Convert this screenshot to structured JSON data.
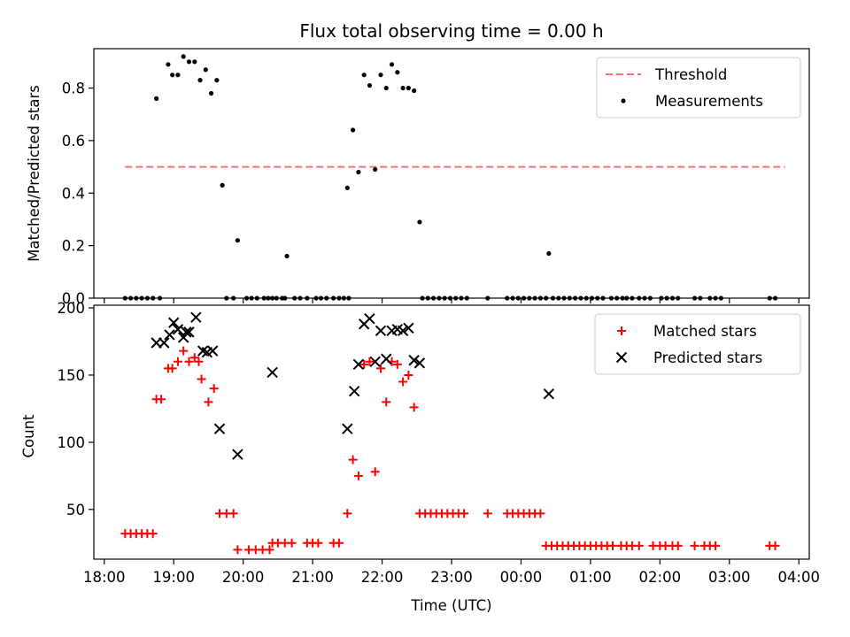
{
  "chart_data": [
    {
      "type": "scatter",
      "title": "Flux total observing time = 0.00 h",
      "xlabel": "",
      "ylabel": "Matched/Predicted stars",
      "x_unit": "hours since 18:00 UTC",
      "xlim": [
        -0.15,
        10.15
      ],
      "ylim": [
        0,
        0.95
      ],
      "yticks": [
        0.0,
        0.2,
        0.4,
        0.6,
        0.8
      ],
      "ytick_labels": [
        "0.0",
        "0.2",
        "0.4",
        "0.6",
        "0.8"
      ],
      "threshold": {
        "name": "Threshold",
        "value": 0.5,
        "x_range": [
          0.3,
          9.8
        ],
        "color": "#ff7070",
        "style": "dashed"
      },
      "series": [
        {
          "name": "Measurements",
          "color": "#000000",
          "marker": "dot",
          "points": [
            [
              0.3,
              0
            ],
            [
              0.38,
              0
            ],
            [
              0.46,
              0
            ],
            [
              0.54,
              0
            ],
            [
              0.62,
              0
            ],
            [
              0.7,
              0
            ],
            [
              0.8,
              0
            ],
            [
              0.75,
              0.76
            ],
            [
              0.92,
              0.89
            ],
            [
              0.98,
              0.85
            ],
            [
              1.06,
              0.85
            ],
            [
              1.14,
              0.92
            ],
            [
              1.22,
              0.9
            ],
            [
              1.3,
              0.9
            ],
            [
              1.38,
              0.83
            ],
            [
              1.46,
              0.87
            ],
            [
              1.54,
              0.78
            ],
            [
              1.62,
              0.83
            ],
            [
              1.7,
              0.43
            ],
            [
              1.76,
              0
            ],
            [
              1.86,
              0
            ],
            [
              1.92,
              0.22
            ],
            [
              2.05,
              0
            ],
            [
              2.12,
              0
            ],
            [
              2.2,
              0
            ],
            [
              2.3,
              0
            ],
            [
              2.36,
              0
            ],
            [
              2.42,
              0
            ],
            [
              2.48,
              0
            ],
            [
              2.56,
              0
            ],
            [
              2.63,
              0.16
            ],
            [
              2.6,
              0
            ],
            [
              2.74,
              0
            ],
            [
              2.82,
              0
            ],
            [
              2.92,
              0
            ],
            [
              3.05,
              0
            ],
            [
              3.12,
              0
            ],
            [
              3.2,
              0
            ],
            [
              3.3,
              0
            ],
            [
              3.38,
              0
            ],
            [
              3.45,
              0
            ],
            [
              3.52,
              0
            ],
            [
              3.5,
              0.42
            ],
            [
              3.58,
              0.64
            ],
            [
              3.66,
              0.48
            ],
            [
              3.74,
              0.85
            ],
            [
              3.82,
              0.81
            ],
            [
              3.9,
              0.49
            ],
            [
              3.98,
              0.85
            ],
            [
              4.06,
              0.8
            ],
            [
              4.14,
              0.89
            ],
            [
              4.22,
              0.86
            ],
            [
              4.3,
              0.8
            ],
            [
              4.38,
              0.8
            ],
            [
              4.46,
              0.79
            ],
            [
              4.54,
              0.29
            ],
            [
              4.58,
              0
            ],
            [
              4.66,
              0
            ],
            [
              4.74,
              0
            ],
            [
              4.82,
              0
            ],
            [
              4.9,
              0
            ],
            [
              4.98,
              0
            ],
            [
              5.06,
              0
            ],
            [
              5.14,
              0
            ],
            [
              5.22,
              0
            ],
            [
              5.52,
              0
            ],
            [
              5.8,
              0
            ],
            [
              5.88,
              0
            ],
            [
              5.96,
              0
            ],
            [
              6.04,
              0
            ],
            [
              6.12,
              0
            ],
            [
              6.2,
              0
            ],
            [
              6.28,
              0
            ],
            [
              6.36,
              0
            ],
            [
              6.4,
              0.17
            ],
            [
              6.46,
              0
            ],
            [
              6.54,
              0
            ],
            [
              6.62,
              0
            ],
            [
              6.7,
              0
            ],
            [
              6.78,
              0
            ],
            [
              6.86,
              0
            ],
            [
              6.94,
              0
            ],
            [
              7.02,
              0
            ],
            [
              7.1,
              0
            ],
            [
              7.18,
              0
            ],
            [
              7.3,
              0
            ],
            [
              7.38,
              0
            ],
            [
              7.46,
              0
            ],
            [
              7.52,
              0
            ],
            [
              7.6,
              0
            ],
            [
              7.7,
              0
            ],
            [
              7.78,
              0
            ],
            [
              7.86,
              0
            ],
            [
              8.02,
              0
            ],
            [
              8.1,
              0
            ],
            [
              8.18,
              0
            ],
            [
              8.26,
              0
            ],
            [
              8.5,
              0
            ],
            [
              8.58,
              0
            ],
            [
              8.72,
              0
            ],
            [
              8.8,
              0
            ],
            [
              8.88,
              0
            ],
            [
              9.58,
              0
            ],
            [
              9.66,
              0
            ]
          ]
        }
      ],
      "legend": {
        "position": "top-right",
        "entries": [
          "Threshold",
          "Measurements"
        ]
      }
    },
    {
      "type": "scatter",
      "title": "",
      "xlabel": "Time (UTC)",
      "ylabel": "Count",
      "x_unit": "hours since 18:00 UTC",
      "xlim": [
        -0.15,
        10.15
      ],
      "ylim": [
        13,
        202
      ],
      "yticks": [
        50,
        100,
        150,
        200
      ],
      "ytick_labels": [
        "50",
        "100",
        "150",
        "200"
      ],
      "xticks": [
        0,
        1,
        2,
        3,
        4,
        5,
        6,
        7,
        8,
        9,
        10
      ],
      "xtick_labels": [
        "18:00",
        "19:00",
        "20:00",
        "21:00",
        "22:00",
        "23:00",
        "00:00",
        "01:00",
        "02:00",
        "03:00",
        "04:00"
      ],
      "series": [
        {
          "name": "Matched stars",
          "color": "#ff0000",
          "marker": "plus",
          "points": [
            [
              0.3,
              32
            ],
            [
              0.38,
              32
            ],
            [
              0.46,
              32
            ],
            [
              0.54,
              32
            ],
            [
              0.62,
              32
            ],
            [
              0.7,
              32
            ],
            [
              0.75,
              132
            ],
            [
              0.82,
              132
            ],
            [
              0.92,
              155
            ],
            [
              0.98,
              155
            ],
            [
              1.06,
              160
            ],
            [
              1.14,
              168
            ],
            [
              1.22,
              160
            ],
            [
              1.3,
              163
            ],
            [
              1.36,
              160
            ],
            [
              1.4,
              147
            ],
            [
              1.5,
              130
            ],
            [
              1.58,
              140
            ],
            [
              1.66,
              47
            ],
            [
              1.76,
              47
            ],
            [
              1.86,
              47
            ],
            [
              1.92,
              20
            ],
            [
              2.08,
              20
            ],
            [
              2.18,
              20
            ],
            [
              2.28,
              20
            ],
            [
              2.38,
              20
            ],
            [
              2.42,
              25
            ],
            [
              2.5,
              25
            ],
            [
              2.6,
              25
            ],
            [
              2.7,
              25
            ],
            [
              2.92,
              25
            ],
            [
              3.0,
              25
            ],
            [
              3.08,
              25
            ],
            [
              3.3,
              25
            ],
            [
              3.38,
              25
            ],
            [
              3.5,
              47
            ],
            [
              3.58,
              87
            ],
            [
              3.66,
              75
            ],
            [
              3.74,
              158
            ],
            [
              3.82,
              160
            ],
            [
              3.9,
              78
            ],
            [
              3.98,
              155
            ],
            [
              4.06,
              130
            ],
            [
              4.14,
              160
            ],
            [
              4.22,
              158
            ],
            [
              4.3,
              145
            ],
            [
              4.38,
              150
            ],
            [
              4.46,
              126
            ],
            [
              4.54,
              47
            ],
            [
              4.62,
              47
            ],
            [
              4.7,
              47
            ],
            [
              4.78,
              47
            ],
            [
              4.86,
              47
            ],
            [
              4.94,
              47
            ],
            [
              5.02,
              47
            ],
            [
              5.1,
              47
            ],
            [
              5.18,
              47
            ],
            [
              5.52,
              47
            ],
            [
              5.8,
              47
            ],
            [
              5.88,
              47
            ],
            [
              5.96,
              47
            ],
            [
              6.04,
              47
            ],
            [
              6.12,
              47
            ],
            [
              6.2,
              47
            ],
            [
              6.28,
              47
            ],
            [
              6.36,
              23
            ],
            [
              6.44,
              23
            ],
            [
              6.52,
              23
            ],
            [
              6.6,
              23
            ],
            [
              6.68,
              23
            ],
            [
              6.76,
              23
            ],
            [
              6.84,
              23
            ],
            [
              6.92,
              23
            ],
            [
              7.0,
              23
            ],
            [
              7.08,
              23
            ],
            [
              7.16,
              23
            ],
            [
              7.24,
              23
            ],
            [
              7.32,
              23
            ],
            [
              7.44,
              23
            ],
            [
              7.52,
              23
            ],
            [
              7.6,
              23
            ],
            [
              7.7,
              23
            ],
            [
              7.9,
              23
            ],
            [
              8.0,
              23
            ],
            [
              8.08,
              23
            ],
            [
              8.18,
              23
            ],
            [
              8.26,
              23
            ],
            [
              8.5,
              23
            ],
            [
              8.64,
              23
            ],
            [
              8.72,
              23
            ],
            [
              8.8,
              23
            ],
            [
              9.58,
              23
            ],
            [
              9.66,
              23
            ]
          ]
        },
        {
          "name": "Predicted stars",
          "color": "#000000",
          "marker": "x",
          "points": [
            [
              0.75,
              174
            ],
            [
              0.86,
              174
            ],
            [
              0.94,
              180
            ],
            [
              1.0,
              189
            ],
            [
              1.06,
              184
            ],
            [
              1.14,
              178
            ],
            [
              1.18,
              182
            ],
            [
              1.22,
              182
            ],
            [
              1.32,
              193
            ],
            [
              1.42,
              168
            ],
            [
              1.48,
              167
            ],
            [
              1.56,
              168
            ],
            [
              1.66,
              110
            ],
            [
              1.92,
              91
            ],
            [
              2.42,
              152
            ],
            [
              3.5,
              110
            ],
            [
              3.6,
              138
            ],
            [
              3.66,
              158
            ],
            [
              3.74,
              188
            ],
            [
              3.82,
              192
            ],
            [
              3.9,
              160
            ],
            [
              3.98,
              183
            ],
            [
              4.06,
              162
            ],
            [
              4.14,
              183
            ],
            [
              4.22,
              184
            ],
            [
              4.3,
              183
            ],
            [
              4.38,
              185
            ],
            [
              4.46,
              161
            ],
            [
              4.54,
              159
            ],
            [
              6.4,
              136
            ]
          ]
        }
      ],
      "legend": {
        "position": "top-right",
        "entries": [
          "Matched stars",
          "Predicted stars"
        ]
      }
    }
  ]
}
